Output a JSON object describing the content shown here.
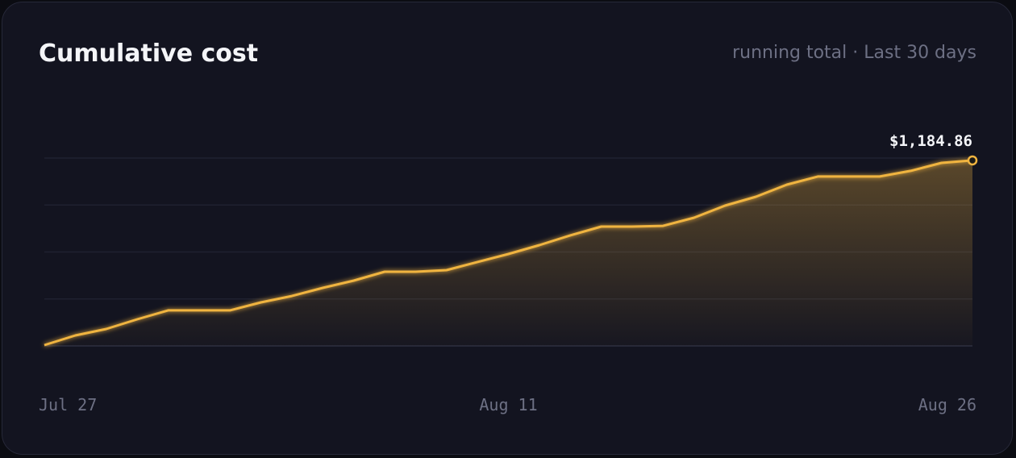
{
  "chart_data": {
    "type": "area",
    "title": "Cumulative cost",
    "subtitle": "running total · Last 30 days",
    "categories": [
      "Jul 27",
      null,
      null,
      null,
      null,
      null,
      null,
      null,
      null,
      null,
      null,
      null,
      null,
      null,
      null,
      "Aug 11",
      null,
      null,
      null,
      null,
      null,
      null,
      null,
      null,
      null,
      null,
      null,
      null,
      null,
      null,
      "Aug 26"
    ],
    "values": [
      5,
      67,
      108,
      170,
      227,
      227,
      227,
      278,
      319,
      371,
      417,
      474,
      474,
      484,
      536,
      587,
      644,
      706,
      762,
      762,
      767,
      819,
      896,
      953,
      1030,
      1082,
      1082,
      1082,
      1118,
      1169,
      1184.86
    ],
    "value_labels": [
      null,
      null,
      null,
      null,
      null,
      null,
      null,
      null,
      null,
      null,
      null,
      null,
      null,
      null,
      null,
      null,
      null,
      null,
      null,
      null,
      null,
      null,
      null,
      null,
      null,
      null,
      null,
      null,
      null,
      null,
      "$1,184.86"
    ],
    "color": "#f0b440",
    "ylim": [
      0,
      1200
    ],
    "yticks": [
      0,
      300,
      600,
      900,
      1200
    ],
    "grid": true
  }
}
